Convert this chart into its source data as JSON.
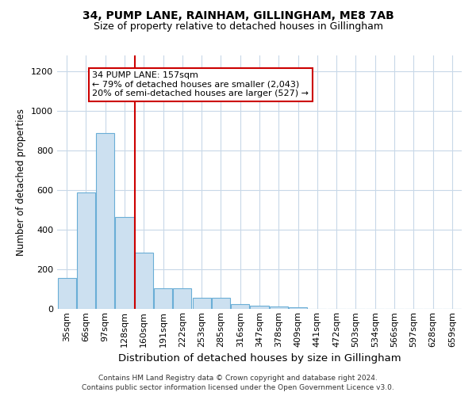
{
  "title1": "34, PUMP LANE, RAINHAM, GILLINGHAM, ME8 7AB",
  "title2": "Size of property relative to detached houses in Gillingham",
  "xlabel": "Distribution of detached houses by size in Gillingham",
  "ylabel": "Number of detached properties",
  "footnote1": "Contains HM Land Registry data © Crown copyright and database right 2024.",
  "footnote2": "Contains public sector information licensed under the Open Government Licence v3.0.",
  "annotation_line1": "34 PUMP LANE: 157sqm",
  "annotation_line2": "← 79% of detached houses are smaller (2,043)",
  "annotation_line3": "20% of semi-detached houses are larger (527) →",
  "bar_color": "#cce0f0",
  "bar_edge_color": "#6aaed6",
  "ref_line_color": "#cc0000",
  "categories": [
    "35sqm",
    "66sqm",
    "97sqm",
    "128sqm",
    "160sqm",
    "191sqm",
    "222sqm",
    "253sqm",
    "285sqm",
    "316sqm",
    "347sqm",
    "378sqm",
    "409sqm",
    "441sqm",
    "472sqm",
    "503sqm",
    "534sqm",
    "566sqm",
    "597sqm",
    "628sqm",
    "659sqm"
  ],
  "values": [
    155,
    590,
    890,
    465,
    285,
    105,
    105,
    58,
    58,
    25,
    18,
    12,
    10,
    0,
    0,
    0,
    0,
    0,
    0,
    0,
    0
  ],
  "ylim": [
    0,
    1280
  ],
  "yticks": [
    0,
    200,
    400,
    600,
    800,
    1000,
    1200
  ],
  "background_color": "#ffffff",
  "grid_color": "#c8d8e8",
  "title1_fontsize": 10,
  "title2_fontsize": 9,
  "tick_fontsize": 8,
  "ylabel_fontsize": 8.5,
  "xlabel_fontsize": 9.5,
  "annotation_fontsize": 8,
  "footnote_fontsize": 6.5
}
